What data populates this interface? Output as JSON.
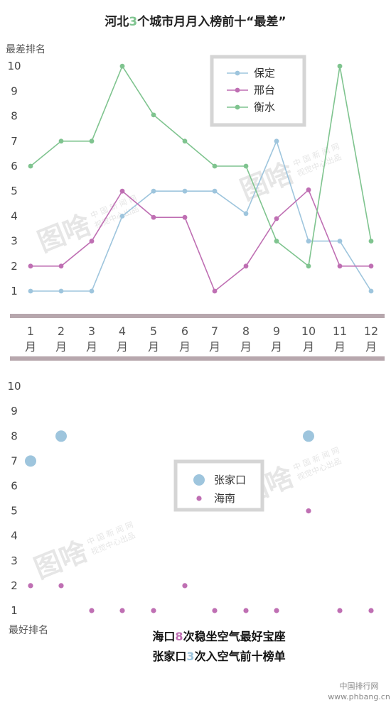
{
  "title": {
    "pre": "河北",
    "num": "3",
    "post": "个城市月月入榜前十“最差”",
    "num_color": "#7fc48f"
  },
  "chart_data": [
    {
      "type": "line",
      "ylabel": "最差排名",
      "ylim": [
        1,
        10
      ],
      "yticks": [
        "1",
        "2",
        "3",
        "4",
        "5",
        "6",
        "7",
        "8",
        "9",
        "10"
      ],
      "categories": [
        "1月",
        "2月",
        "3月",
        "4月",
        "5月",
        "6月",
        "7月",
        "8月",
        "9月",
        "10月",
        "11月",
        "12月"
      ],
      "legend_position": "top-right",
      "series": [
        {
          "name": "保定",
          "color": "#9ec5dd",
          "values": [
            1,
            1,
            1,
            4,
            5,
            5,
            5,
            4.1,
            7,
            3,
            3,
            1
          ]
        },
        {
          "name": "邢台",
          "color": "#bf6fb3",
          "values": [
            2,
            2,
            3,
            5,
            3.95,
            3.95,
            1,
            2,
            3.9,
            5.05,
            2,
            2
          ]
        },
        {
          "name": "衡水",
          "color": "#7fc48f",
          "values": [
            6,
            7,
            7,
            10,
            8.05,
            7,
            6,
            6,
            3,
            2,
            10,
            3
          ]
        }
      ]
    },
    {
      "type": "scatter",
      "ylabel": "最好排名",
      "ylim": [
        1,
        10
      ],
      "yticks": [
        "1",
        "2",
        "3",
        "4",
        "5",
        "6",
        "7",
        "8",
        "9",
        "10"
      ],
      "categories": [
        "1月",
        "2月",
        "3月",
        "4月",
        "5月",
        "6月",
        "7月",
        "8月",
        "9月",
        "10月",
        "11月",
        "12月"
      ],
      "legend_position": "center",
      "series": [
        {
          "name": "张家口",
          "color": "#9ec5dd",
          "values": [
            7,
            8,
            null,
            null,
            null,
            null,
            null,
            null,
            null,
            8,
            null,
            null
          ]
        },
        {
          "name": "海南",
          "color": "#bf6fb3",
          "values": [
            2,
            2,
            1,
            1,
            1,
            2,
            1,
            1,
            1,
            5,
            1,
            1
          ]
        }
      ]
    }
  ],
  "caption": [
    {
      "pre": "海口",
      "num": "8",
      "post": "次稳坐空气最好宝座",
      "num_color": "#bf6fb3"
    },
    {
      "pre": "张家口",
      "num": "3",
      "post": "次入空气前十榜单",
      "num_color": "#9ec5dd"
    }
  ],
  "watermarks": [
    {
      "logo": "图啥",
      "line1": "中 国 新 闻 网",
      "line2": "视觉中心出品"
    },
    {
      "logo": "图啥",
      "line1": "中 国 新 闻 网",
      "line2": "视觉中心出品"
    },
    {
      "logo": "图啥",
      "line1": "中 国 新 闻 网",
      "line2": "视觉中心出品"
    },
    {
      "logo": "图啥",
      "line1": "中 国 新 闻 网",
      "line2": "视觉中心出品"
    }
  ],
  "footer": {
    "brand": "中国排行网",
    "url": "www.phbang.cn"
  },
  "colors": {
    "divider": "#b7a7ad",
    "legend_border": "#d5d5d5",
    "grid_bar": "#e8e8e8"
  }
}
